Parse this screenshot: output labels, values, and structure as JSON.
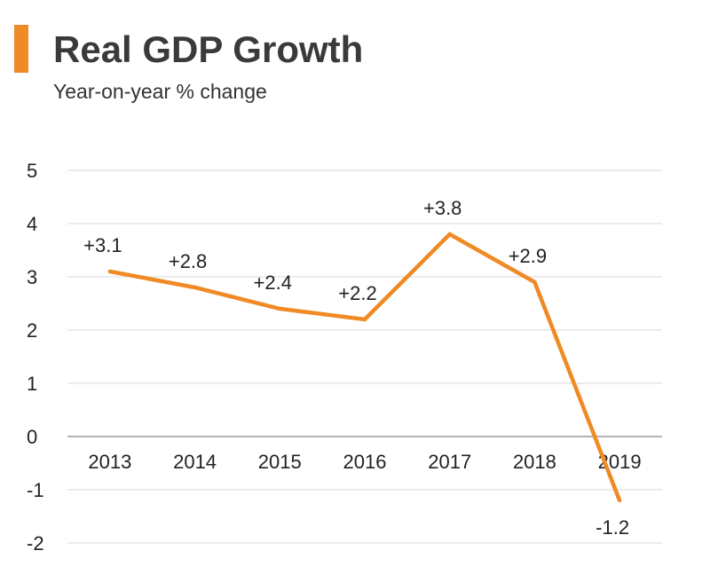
{
  "header": {
    "title": "Real GDP Growth",
    "subtitle": "Year-on-year % change",
    "accent_color": "#f08a24"
  },
  "chart_data": {
    "type": "line",
    "title": "Real GDP Growth",
    "subtitle": "Year-on-year % change",
    "xlabel": "",
    "ylabel": "",
    "categories": [
      "2013",
      "2014",
      "2015",
      "2016",
      "2017",
      "2018",
      "2019"
    ],
    "series": [
      {
        "name": "Real GDP Growth",
        "values": [
          3.1,
          2.8,
          2.4,
          2.2,
          3.8,
          2.9,
          -1.2
        ],
        "data_labels": [
          "+3.1",
          "+2.8",
          "+2.4",
          "+2.2",
          "+3.8",
          "+2.9",
          "-1.2"
        ],
        "color": "#f08a24"
      }
    ],
    "yticks": [
      5,
      4,
      3,
      2,
      1,
      0,
      -1,
      -2
    ],
    "ytick_labels": [
      "5",
      "4",
      "3",
      "2",
      "1",
      "0",
      "-1",
      "-2"
    ],
    "ylim": [
      -2,
      5
    ],
    "grid": true,
    "legend": "none",
    "colors": {
      "grid": "#d9d9d9",
      "zero_axis": "#9a9a9a",
      "line": "#f08a24"
    }
  }
}
